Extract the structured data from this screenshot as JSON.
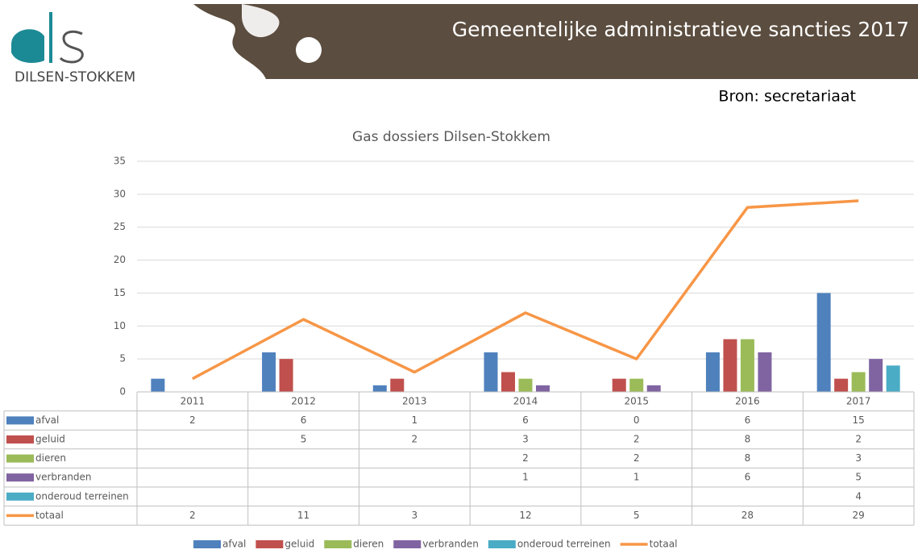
{
  "header": {
    "title": "Gemeentelijke administratieve sancties 2017",
    "logo_text": "DILSEN-STOKKEM",
    "source": "Bron: secretariaat"
  },
  "chart_data": {
    "type": "bar",
    "title": "Gas dossiers Dilsen-Stokkem",
    "categories": [
      "2011",
      "2012",
      "2013",
      "2014",
      "2015",
      "2016",
      "2017"
    ],
    "series": [
      {
        "name": "afval",
        "color": "#4f81bd",
        "values": [
          2,
          6,
          1,
          6,
          0,
          6,
          15
        ]
      },
      {
        "name": "geluid",
        "color": "#c0504d",
        "values": [
          null,
          5,
          2,
          3,
          2,
          8,
          2
        ]
      },
      {
        "name": "dieren",
        "color": "#9bbb59",
        "values": [
          null,
          null,
          null,
          2,
          2,
          8,
          3
        ]
      },
      {
        "name": "verbranden",
        "color": "#8064a2",
        "values": [
          null,
          null,
          null,
          1,
          1,
          6,
          5
        ]
      },
      {
        "name": "onderoud terreinen",
        "color": "#4bacc6",
        "values": [
          null,
          null,
          null,
          null,
          null,
          null,
          4
        ]
      },
      {
        "name": "totaal",
        "color": "#f79646",
        "type": "line",
        "values": [
          2,
          11,
          3,
          12,
          5,
          28,
          29
        ]
      }
    ],
    "ylim": [
      0,
      35
    ],
    "yticks": [
      0,
      5,
      10,
      15,
      20,
      25,
      30,
      35
    ],
    "grid": true,
    "legend": "bottom",
    "data_table": true
  }
}
